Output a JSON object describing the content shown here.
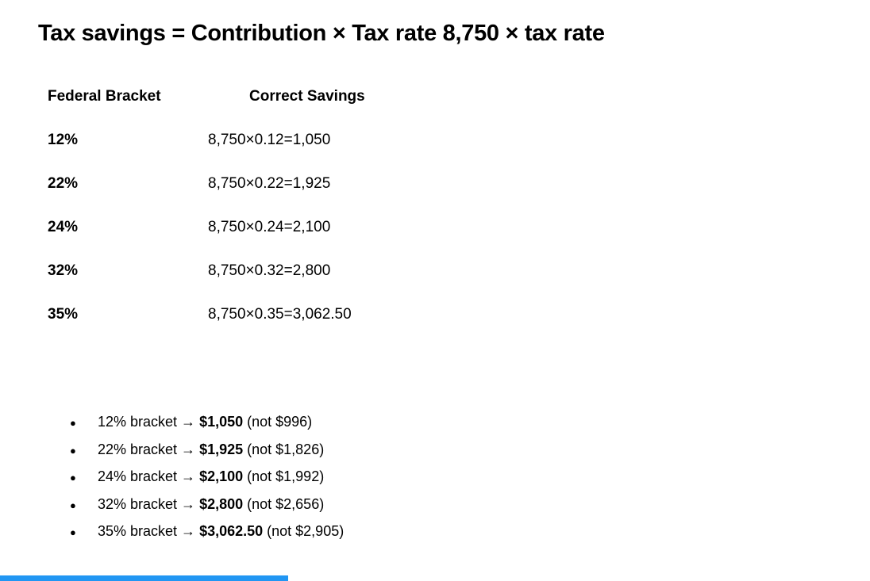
{
  "title": "Tax savings = Contribution × Tax rate 8,750 × tax rate",
  "table": {
    "headers": [
      "Federal Bracket",
      "Correct Savings"
    ],
    "rows": [
      {
        "bracket": "12%",
        "calculation": "8,750×0.12=1,050"
      },
      {
        "bracket": "22%",
        "calculation": "8,750×0.22=1,925"
      },
      {
        "bracket": "24%",
        "calculation": "8,750×0.24=2,100"
      },
      {
        "bracket": "32%",
        "calculation": "8,750×0.32=2,800"
      },
      {
        "bracket": "35%",
        "calculation": "8,750×0.35=3,062.50"
      }
    ]
  },
  "bullets": [
    {
      "prefix": "12% bracket → ",
      "amount": "$1,050",
      "suffix": " (not $996)"
    },
    {
      "prefix": "22% bracket → ",
      "amount": "$1,925",
      "suffix": " (not $1,826)"
    },
    {
      "prefix": "24% bracket → ",
      "amount": "$2,100",
      "suffix": " (not $1,992)"
    },
    {
      "prefix": "32% bracket → ",
      "amount": "$2,800",
      "suffix": " (not $2,656)"
    },
    {
      "prefix": "35% bracket → ",
      "amount": "$3,062.50",
      "suffix": " (not $2,905)"
    }
  ],
  "bullet_glyph": "●",
  "accent_bar": {
    "color": "#2196f3"
  }
}
